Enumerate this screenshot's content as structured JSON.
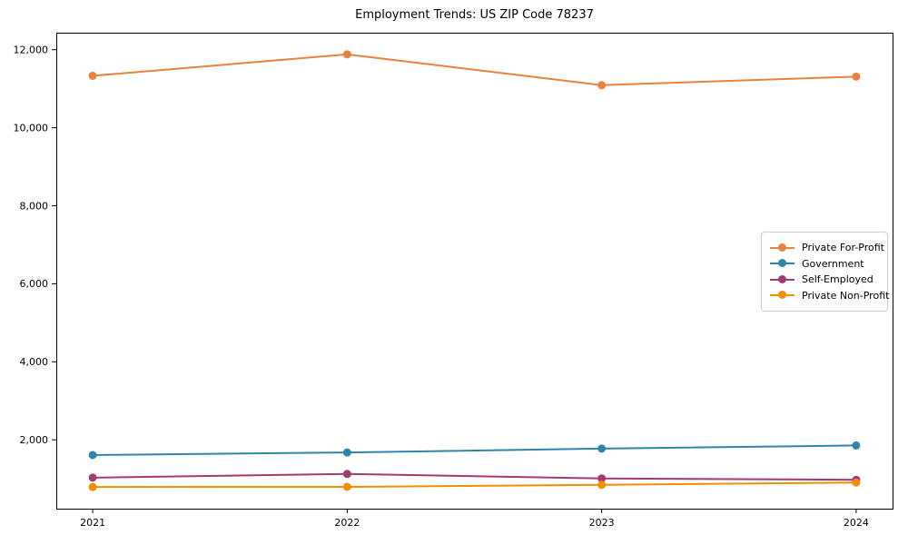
{
  "chart_data": {
    "type": "line",
    "title": "Employment Trends: US ZIP Code 78237",
    "x": [
      2021,
      2022,
      2023,
      2024
    ],
    "categories": [
      "2021",
      "2022",
      "2023",
      "2024"
    ],
    "series": [
      {
        "name": "Private For-Profit",
        "color": "#E8823C",
        "values": [
          11330,
          11880,
          11090,
          11310
        ]
      },
      {
        "name": "Government",
        "color": "#2E86AB",
        "values": [
          1610,
          1675,
          1775,
          1855
        ]
      },
      {
        "name": "Self-Employed",
        "color": "#A23B72",
        "values": [
          1030,
          1125,
          1010,
          975
        ]
      },
      {
        "name": "Private Non-Profit",
        "color": "#F18F01",
        "values": [
          790,
          795,
          845,
          905
        ]
      }
    ],
    "xlabel": "",
    "ylabel": "",
    "xlim": [
      2020.857,
      2024.143
    ],
    "ylim": [
      235,
      12435
    ],
    "yticks": [
      2000,
      4000,
      6000,
      8000,
      10000,
      12000
    ],
    "ytick_labels": [
      "2,000",
      "4,000",
      "6,000",
      "8,000",
      "10,000",
      "12,000"
    ],
    "grid": false,
    "legend_position": "center-right",
    "marker": "circle",
    "line_width": 2,
    "marker_radius": 4.5,
    "axis_color": "#000000",
    "background_color": "#ffffff"
  }
}
